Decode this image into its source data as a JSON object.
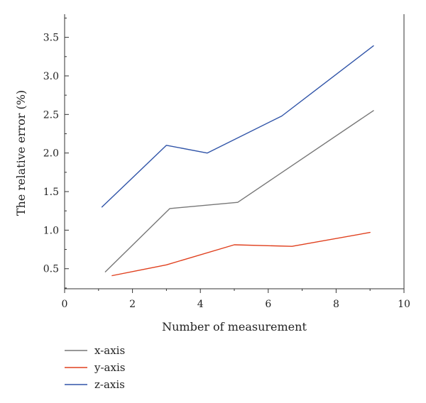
{
  "chart_data": {
    "type": "line",
    "xlabel": "Number of measurement",
    "ylabel": "The relative error (%)",
    "xlim": [
      0,
      10
    ],
    "ylim": [
      0.24,
      3.8
    ],
    "x_ticks": [
      0,
      2,
      4,
      6,
      8,
      10
    ],
    "y_ticks": [
      0.5,
      1.0,
      1.5,
      2.0,
      2.5,
      3.0,
      3.5
    ],
    "x_tick_labels": [
      "0",
      "2",
      "4",
      "6",
      "8",
      "10"
    ],
    "y_tick_labels": [
      "0.5",
      "1.0",
      "1.5",
      "2.0",
      "2.5",
      "3.0",
      "3.5"
    ],
    "grid": false,
    "legend_position": "bottom-left, below plot",
    "series": [
      {
        "name": "x-axis",
        "color": "#777777",
        "x": [
          1.2,
          3.1,
          5.1,
          9.1
        ],
        "y": [
          0.46,
          1.28,
          1.36,
          2.55
        ]
      },
      {
        "name": "y-axis",
        "color": "#e0401e",
        "x": [
          1.4,
          3.0,
          5.0,
          6.7,
          9.0
        ],
        "y": [
          0.41,
          0.55,
          0.81,
          0.79,
          0.97
        ]
      },
      {
        "name": "z-axis",
        "color": "#3054a8",
        "x": [
          1.1,
          3.0,
          4.2,
          6.4,
          9.1
        ],
        "y": [
          1.3,
          2.1,
          2.0,
          2.48,
          3.39
        ]
      }
    ]
  }
}
